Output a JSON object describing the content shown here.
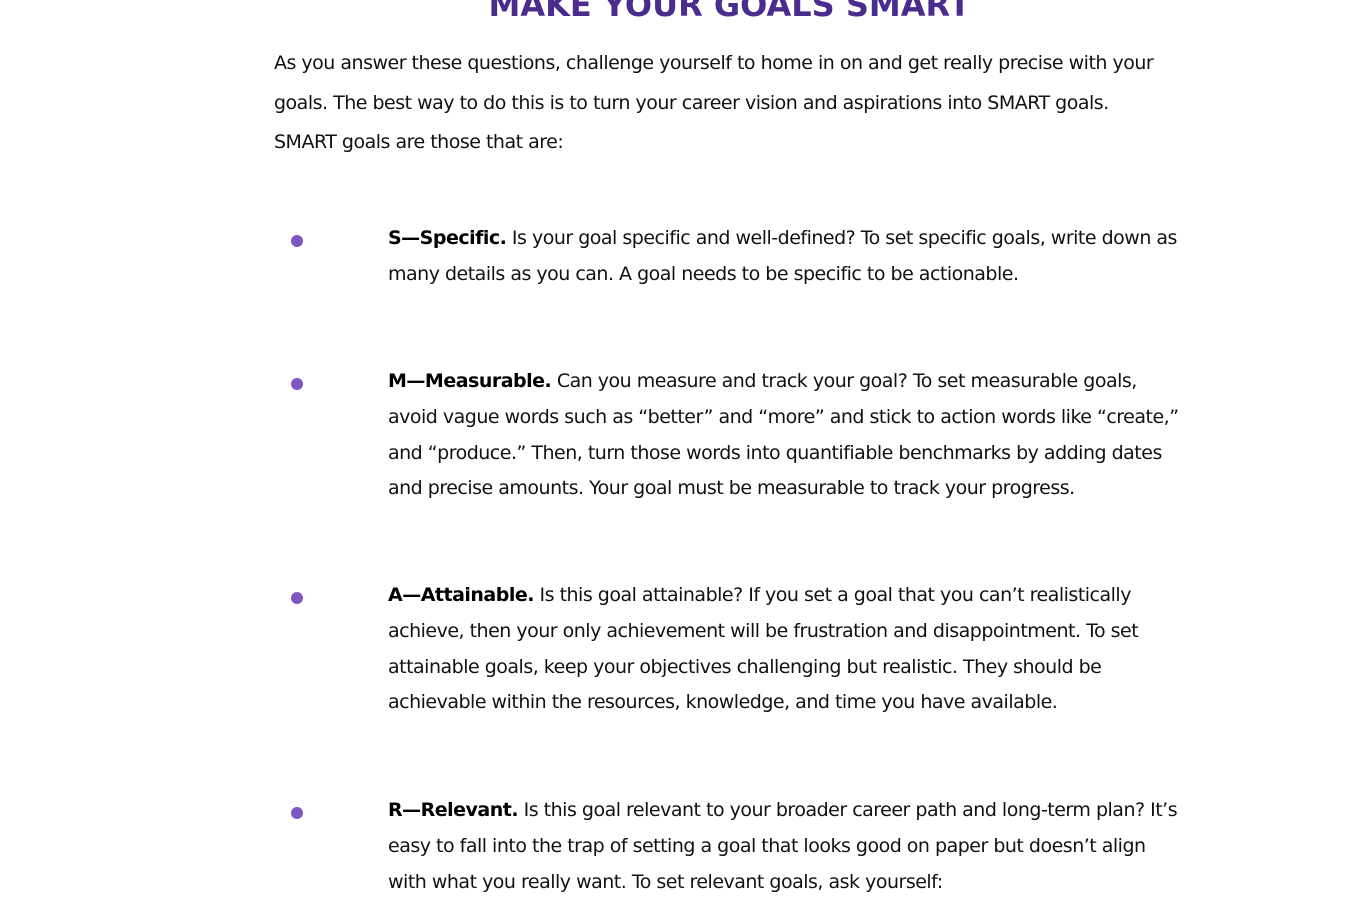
{
  "heading": "MAKE YOUR GOALS SMART",
  "intro": "As you answer these questions, challenge yourself to home in on and get really precise with your goals. The best way to do this is to turn your career vision and aspirations into SMART goals. SMART goals are those that are:",
  "colors": {
    "accent": "#4a2c8c",
    "bullet": "#7e57c2",
    "text": "#111111"
  },
  "items": [
    {
      "term": "S—Specific.",
      "text": " Is your goal specific and well-defined? To set specific goals, write down as many details as you can. A goal needs to be specific to be actionable."
    },
    {
      "term": "M—Measurable.",
      "text": " Can you measure and track your goal? To set measurable goals, avoid vague words such as “better” and “more” and stick to action words like “create,” and “produce.” Then, turn those words into quantifiable benchmarks by adding dates and precise amounts. Your goal must be measurable to track your progress."
    },
    {
      "term": "A—Attainable.",
      "text": " Is this goal attainable? If you set a goal that you can’t realistically achieve, then your only achievement will be frustration and disappointment. To set attainable goals, keep your objectives challenging but realistic. They should be achievable within the resources, knowledge, and time you have available."
    },
    {
      "term": "R—Relevant.",
      "text": " Is this goal relevant to your broader career path and long-term plan? It’s easy to fall into the trap of setting a goal that looks good on paper but doesn’t align with what you really want. To set relevant goals, ask yourself:"
    }
  ]
}
